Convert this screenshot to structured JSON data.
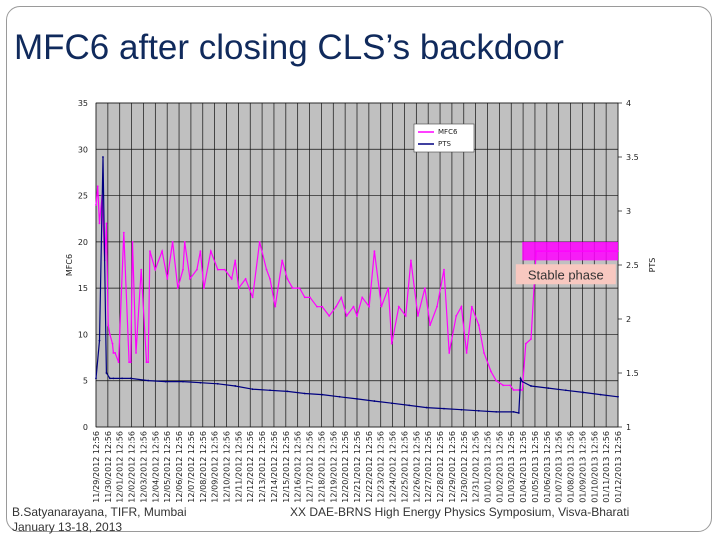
{
  "slide": {
    "title": "MFC6 after closing CLS’s backdoor",
    "footer_left_line1": "B.Satyanarayana, TIFR, Mumbai",
    "footer_left_line2": "January 13-18, 2013",
    "footer_right": "XX DAE-BRNS High Energy Physics Symposium, Visva-Bharati"
  },
  "colors": {
    "plot_bg": "#c0c0c0",
    "mfc6": "#ff00ff",
    "pts": "#000080",
    "annotation_bg": "#f8c8c0",
    "title": "#102a5c"
  },
  "chart_data": {
    "type": "line",
    "ylabel": "MFC6",
    "y2label": "PTS",
    "ylim": [
      0,
      35
    ],
    "y2lim": [
      1,
      4
    ],
    "yticks": [
      0,
      5,
      10,
      15,
      20,
      25,
      30,
      35
    ],
    "y2ticks": [
      1,
      1.5,
      2,
      2.5,
      3,
      3.5,
      4
    ],
    "ytick_labels": [
      "0",
      "5",
      "10",
      "15",
      "20",
      "25",
      "30",
      "35"
    ],
    "y2tick_labels": [
      "1",
      "1.5",
      "2",
      "2.5",
      "3",
      "3.5",
      "4"
    ],
    "xlim": [
      0,
      30
    ],
    "grid": true,
    "legend_position": "top-center",
    "categories": [
      "11/29/2012 12:56",
      "11/30/2012 12:56",
      "12/01/2012 12:56",
      "12/02/2012 12:56",
      "12/03/2012 12:56",
      "12/04/2012 12:56",
      "12/05/2012 12:56",
      "12/06/2012 12:56",
      "12/07/2012 12:56",
      "12/08/2012 12:56",
      "12/09/2012 12:56",
      "12/10/2012 12:56",
      "12/11/2012 12:56",
      "12/12/2012 12:56",
      "12/13/2012 12:56",
      "12/14/2012 12:56",
      "12/15/2012 12:56",
      "12/16/2012 12:56",
      "12/17/2012 12:56",
      "12/18/2012 12:56",
      "12/19/2012 12:56",
      "12/20/2012 12:56",
      "12/21/2012 12:56",
      "12/22/2012 12:56",
      "12/23/2012 12:56",
      "12/24/2012 12:56",
      "12/25/2012 12:56",
      "12/26/2012 12:56",
      "12/27/2012 12:56",
      "12/28/2012 12:56",
      "12/29/2012 12:56",
      "12/30/2012 12:56",
      "12/31/2012 12:56",
      "01/01/2013 12:56",
      "01/02/2013 12:56",
      "01/03/2013 12:56",
      "01/04/2013 12:56",
      "01/05/2013 12:56",
      "01/06/2013 12:56",
      "01/07/2013 12:56",
      "01/08/2013 12:56",
      "01/09/2013 12:56",
      "01/10/2013 12:56",
      "01/11/2013 12:56",
      "01/12/2013 12:56"
    ],
    "tick_days": [
      0,
      1,
      2,
      3,
      4,
      5,
      6,
      7,
      8,
      9,
      10,
      11,
      12,
      13,
      14,
      15,
      16,
      17,
      18,
      19,
      20,
      21,
      22,
      23,
      24,
      25,
      26,
      27,
      28,
      29,
      30,
      31,
      32,
      33,
      34,
      35,
      36,
      37,
      38,
      39,
      40,
      41,
      42,
      43,
      44
    ],
    "series": [
      {
        "name": "MFC6",
        "axis": "left",
        "x": [
          0,
          0.1,
          0.2,
          0.35,
          0.5,
          0.6,
          0.7,
          0.8,
          0.95,
          1.0,
          1.1,
          1.3,
          1.6,
          1.9,
          2.0,
          2.1,
          2.3,
          2.6,
          2.9,
          3.0,
          3.1,
          3.4,
          3.8,
          4.1,
          4.4,
          4.7,
          5.0,
          5.1,
          5.4,
          5.8,
          6.0,
          6.2,
          6.6,
          7.0,
          7.4,
          7.8,
          8.0,
          8.2,
          8.6,
          9.0,
          9.4,
          9.8,
          10.0,
          10.3,
          10.7,
          11.0,
          11.3,
          11.7,
          12.0,
          12.3,
          12.7,
          13.0,
          13.4,
          13.8,
          14.1,
          14.4,
          14.8,
          15.0,
          15.3,
          15.7,
          16.0,
          16.4,
          16.8,
          17.0,
          17.4,
          17.8,
          18.1,
          18.5,
          18.9,
          19.2,
          19.6,
          20.0,
          20.3,
          20.7,
          21.0,
          21.3,
          21.6,
          22.0,
          22.3,
          22.7,
          23.0,
          23.4,
          23.8,
          24.0,
          24.3,
          24.5,
          24.7,
          25.0,
          25.3,
          25.6,
          26.0,
          26.5,
          27.0,
          27.5,
          28.0,
          28.5,
          29.0,
          29.5,
          30.0
        ],
        "values": [
          24,
          26,
          22,
          25,
          18,
          22,
          11,
          10,
          9,
          8,
          8,
          7,
          21,
          7,
          7,
          20,
          8,
          17,
          7,
          7,
          19,
          17,
          19,
          16,
          20,
          15,
          17,
          20,
          16,
          17,
          19,
          15,
          19,
          17,
          17,
          16,
          18,
          15,
          16,
          14,
          20,
          17,
          16,
          13,
          18,
          16,
          15,
          15,
          14,
          14,
          13,
          13,
          12,
          13,
          14,
          12,
          13,
          12,
          14,
          13,
          19,
          13,
          15,
          9,
          13,
          12,
          18,
          12,
          15,
          11,
          13,
          17,
          8,
          12,
          13,
          8,
          13,
          11,
          8,
          6,
          5,
          4.5,
          4.5,
          4,
          4,
          4,
          9,
          9.5,
          19,
          19,
          19,
          19,
          19,
          19,
          19,
          19,
          19,
          19,
          19
        ]
      },
      {
        "name": "PTS",
        "axis": "right",
        "x": [
          0,
          0.2,
          0.4,
          0.6,
          0.8,
          1.0,
          1.5,
          2.0,
          3.0,
          4.0,
          5.0,
          6.0,
          7.0,
          8.0,
          9.0,
          10.0,
          11.0,
          12.0,
          13.0,
          14.0,
          15.0,
          16.0,
          17.0,
          18.0,
          19.0,
          20.0,
          21.0,
          22.0,
          23.0,
          24.0,
          24.3,
          24.4,
          24.5,
          25.0,
          26.0,
          27.0,
          28.0,
          29.0,
          30.0
        ],
        "values": [
          1.45,
          1.8,
          3.5,
          1.5,
          1.45,
          1.45,
          1.45,
          1.45,
          1.43,
          1.42,
          1.42,
          1.41,
          1.4,
          1.38,
          1.35,
          1.34,
          1.33,
          1.31,
          1.3,
          1.28,
          1.26,
          1.24,
          1.22,
          1.2,
          1.18,
          1.17,
          1.16,
          1.15,
          1.14,
          1.14,
          1.13,
          1.45,
          1.42,
          1.38,
          1.36,
          1.34,
          1.32,
          1.3,
          1.28
        ]
      }
    ],
    "annotations": [
      {
        "text": "Stable phase",
        "x": 27,
        "y": 16.5
      }
    ]
  }
}
